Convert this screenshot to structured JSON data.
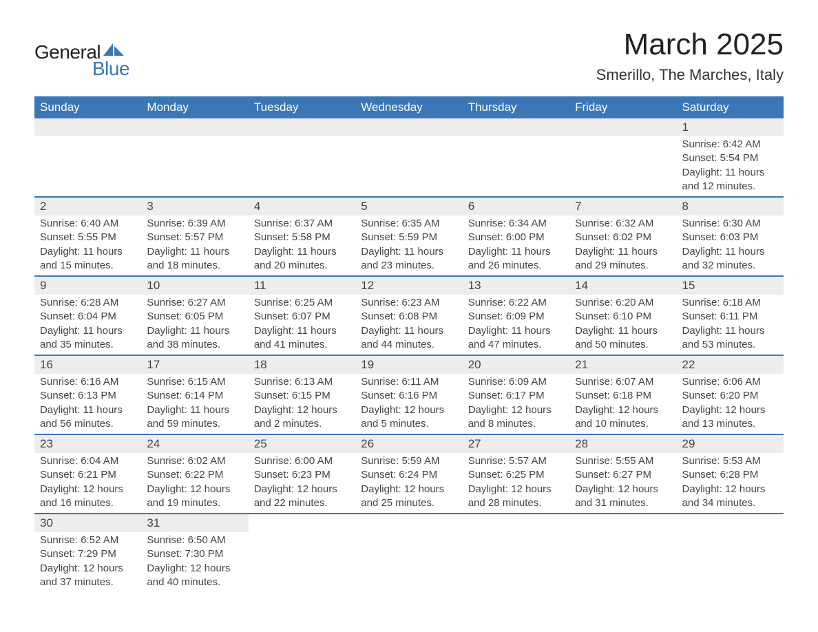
{
  "logo": {
    "text1": "General",
    "text2": "Blue",
    "sail_color": "#3b77b6"
  },
  "title": "March 2025",
  "location": "Smerillo, The Marches, Italy",
  "header_bg": "#3b77b6",
  "header_fg": "#ffffff",
  "strip_bg": "#ededed",
  "border_color": "#3b77b6",
  "text_color": "#444444",
  "weekdays": [
    "Sunday",
    "Monday",
    "Tuesday",
    "Wednesday",
    "Thursday",
    "Friday",
    "Saturday"
  ],
  "weeks": [
    [
      {
        "day": "",
        "lines": []
      },
      {
        "day": "",
        "lines": []
      },
      {
        "day": "",
        "lines": []
      },
      {
        "day": "",
        "lines": []
      },
      {
        "day": "",
        "lines": []
      },
      {
        "day": "",
        "lines": []
      },
      {
        "day": "1",
        "lines": [
          "Sunrise: 6:42 AM",
          "Sunset: 5:54 PM",
          "Daylight: 11 hours",
          "and 12 minutes."
        ]
      }
    ],
    [
      {
        "day": "2",
        "lines": [
          "Sunrise: 6:40 AM",
          "Sunset: 5:55 PM",
          "Daylight: 11 hours",
          "and 15 minutes."
        ]
      },
      {
        "day": "3",
        "lines": [
          "Sunrise: 6:39 AM",
          "Sunset: 5:57 PM",
          "Daylight: 11 hours",
          "and 18 minutes."
        ]
      },
      {
        "day": "4",
        "lines": [
          "Sunrise: 6:37 AM",
          "Sunset: 5:58 PM",
          "Daylight: 11 hours",
          "and 20 minutes."
        ]
      },
      {
        "day": "5",
        "lines": [
          "Sunrise: 6:35 AM",
          "Sunset: 5:59 PM",
          "Daylight: 11 hours",
          "and 23 minutes."
        ]
      },
      {
        "day": "6",
        "lines": [
          "Sunrise: 6:34 AM",
          "Sunset: 6:00 PM",
          "Daylight: 11 hours",
          "and 26 minutes."
        ]
      },
      {
        "day": "7",
        "lines": [
          "Sunrise: 6:32 AM",
          "Sunset: 6:02 PM",
          "Daylight: 11 hours",
          "and 29 minutes."
        ]
      },
      {
        "day": "8",
        "lines": [
          "Sunrise: 6:30 AM",
          "Sunset: 6:03 PM",
          "Daylight: 11 hours",
          "and 32 minutes."
        ]
      }
    ],
    [
      {
        "day": "9",
        "lines": [
          "Sunrise: 6:28 AM",
          "Sunset: 6:04 PM",
          "Daylight: 11 hours",
          "and 35 minutes."
        ]
      },
      {
        "day": "10",
        "lines": [
          "Sunrise: 6:27 AM",
          "Sunset: 6:05 PM",
          "Daylight: 11 hours",
          "and 38 minutes."
        ]
      },
      {
        "day": "11",
        "lines": [
          "Sunrise: 6:25 AM",
          "Sunset: 6:07 PM",
          "Daylight: 11 hours",
          "and 41 minutes."
        ]
      },
      {
        "day": "12",
        "lines": [
          "Sunrise: 6:23 AM",
          "Sunset: 6:08 PM",
          "Daylight: 11 hours",
          "and 44 minutes."
        ]
      },
      {
        "day": "13",
        "lines": [
          "Sunrise: 6:22 AM",
          "Sunset: 6:09 PM",
          "Daylight: 11 hours",
          "and 47 minutes."
        ]
      },
      {
        "day": "14",
        "lines": [
          "Sunrise: 6:20 AM",
          "Sunset: 6:10 PM",
          "Daylight: 11 hours",
          "and 50 minutes."
        ]
      },
      {
        "day": "15",
        "lines": [
          "Sunrise: 6:18 AM",
          "Sunset: 6:11 PM",
          "Daylight: 11 hours",
          "and 53 minutes."
        ]
      }
    ],
    [
      {
        "day": "16",
        "lines": [
          "Sunrise: 6:16 AM",
          "Sunset: 6:13 PM",
          "Daylight: 11 hours",
          "and 56 minutes."
        ]
      },
      {
        "day": "17",
        "lines": [
          "Sunrise: 6:15 AM",
          "Sunset: 6:14 PM",
          "Daylight: 11 hours",
          "and 59 minutes."
        ]
      },
      {
        "day": "18",
        "lines": [
          "Sunrise: 6:13 AM",
          "Sunset: 6:15 PM",
          "Daylight: 12 hours",
          "and 2 minutes."
        ]
      },
      {
        "day": "19",
        "lines": [
          "Sunrise: 6:11 AM",
          "Sunset: 6:16 PM",
          "Daylight: 12 hours",
          "and 5 minutes."
        ]
      },
      {
        "day": "20",
        "lines": [
          "Sunrise: 6:09 AM",
          "Sunset: 6:17 PM",
          "Daylight: 12 hours",
          "and 8 minutes."
        ]
      },
      {
        "day": "21",
        "lines": [
          "Sunrise: 6:07 AM",
          "Sunset: 6:18 PM",
          "Daylight: 12 hours",
          "and 10 minutes."
        ]
      },
      {
        "day": "22",
        "lines": [
          "Sunrise: 6:06 AM",
          "Sunset: 6:20 PM",
          "Daylight: 12 hours",
          "and 13 minutes."
        ]
      }
    ],
    [
      {
        "day": "23",
        "lines": [
          "Sunrise: 6:04 AM",
          "Sunset: 6:21 PM",
          "Daylight: 12 hours",
          "and 16 minutes."
        ]
      },
      {
        "day": "24",
        "lines": [
          "Sunrise: 6:02 AM",
          "Sunset: 6:22 PM",
          "Daylight: 12 hours",
          "and 19 minutes."
        ]
      },
      {
        "day": "25",
        "lines": [
          "Sunrise: 6:00 AM",
          "Sunset: 6:23 PM",
          "Daylight: 12 hours",
          "and 22 minutes."
        ]
      },
      {
        "day": "26",
        "lines": [
          "Sunrise: 5:59 AM",
          "Sunset: 6:24 PM",
          "Daylight: 12 hours",
          "and 25 minutes."
        ]
      },
      {
        "day": "27",
        "lines": [
          "Sunrise: 5:57 AM",
          "Sunset: 6:25 PM",
          "Daylight: 12 hours",
          "and 28 minutes."
        ]
      },
      {
        "day": "28",
        "lines": [
          "Sunrise: 5:55 AM",
          "Sunset: 6:27 PM",
          "Daylight: 12 hours",
          "and 31 minutes."
        ]
      },
      {
        "day": "29",
        "lines": [
          "Sunrise: 5:53 AM",
          "Sunset: 6:28 PM",
          "Daylight: 12 hours",
          "and 34 minutes."
        ]
      }
    ],
    [
      {
        "day": "30",
        "lines": [
          "Sunrise: 6:52 AM",
          "Sunset: 7:29 PM",
          "Daylight: 12 hours",
          "and 37 minutes."
        ]
      },
      {
        "day": "31",
        "lines": [
          "Sunrise: 6:50 AM",
          "Sunset: 7:30 PM",
          "Daylight: 12 hours",
          "and 40 minutes."
        ]
      },
      {
        "day": "",
        "lines": []
      },
      {
        "day": "",
        "lines": []
      },
      {
        "day": "",
        "lines": []
      },
      {
        "day": "",
        "lines": []
      },
      {
        "day": "",
        "lines": []
      }
    ]
  ]
}
